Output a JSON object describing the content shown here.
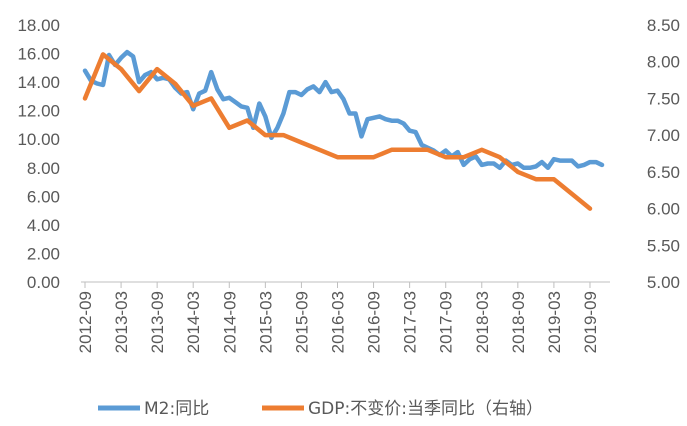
{
  "chart_data": {
    "type": "line",
    "x": [
      "2012-09",
      "2012-10",
      "2012-11",
      "2012-12",
      "2013-01",
      "2013-02",
      "2013-03",
      "2013-04",
      "2013-05",
      "2013-06",
      "2013-07",
      "2013-08",
      "2013-09",
      "2013-10",
      "2013-11",
      "2013-12",
      "2014-01",
      "2014-02",
      "2014-03",
      "2014-04",
      "2014-05",
      "2014-06",
      "2014-07",
      "2014-08",
      "2014-09",
      "2014-10",
      "2014-11",
      "2014-12",
      "2015-01",
      "2015-02",
      "2015-03",
      "2015-04",
      "2015-05",
      "2015-06",
      "2015-07",
      "2015-08",
      "2015-09",
      "2015-10",
      "2015-11",
      "2015-12",
      "2016-01",
      "2016-02",
      "2016-03",
      "2016-04",
      "2016-05",
      "2016-06",
      "2016-07",
      "2016-08",
      "2016-09",
      "2016-10",
      "2016-11",
      "2016-12",
      "2017-01",
      "2017-02",
      "2017-03",
      "2017-04",
      "2017-05",
      "2017-06",
      "2017-07",
      "2017-08",
      "2017-09",
      "2017-10",
      "2017-11",
      "2017-12",
      "2018-01",
      "2018-02",
      "2018-03",
      "2018-04",
      "2018-05",
      "2018-06",
      "2018-07",
      "2018-08",
      "2018-09",
      "2018-10",
      "2018-11",
      "2018-12",
      "2019-01",
      "2019-02",
      "2019-03",
      "2019-04",
      "2019-05",
      "2019-06",
      "2019-07",
      "2019-08",
      "2019-09",
      "2019-10",
      "2019-11"
    ],
    "x_tick_labels": [
      "2012-09",
      "2013-03",
      "2013-09",
      "2014-03",
      "2014-09",
      "2015-03",
      "2015-09",
      "2016-03",
      "2016-09",
      "2017-03",
      "2017-09",
      "2018-03",
      "2018-09",
      "2019-03",
      "2019-09"
    ],
    "left_axis": {
      "ylim": [
        0,
        18
      ],
      "ticks": [
        "0.00",
        "2.00",
        "4.00",
        "6.00",
        "8.00",
        "10.00",
        "12.00",
        "14.00",
        "16.00",
        "18.00"
      ]
    },
    "right_axis": {
      "ylim": [
        5.0,
        8.5
      ],
      "ticks": [
        "5.00",
        "5.50",
        "6.00",
        "6.50",
        "7.00",
        "7.50",
        "8.00",
        "8.50"
      ]
    },
    "grid": false,
    "legend_position": "bottom",
    "series": [
      {
        "name": "M2:同比",
        "axis": "left",
        "color": "#5B9BD5",
        "x": [
          "2012-09",
          "2012-10",
          "2012-11",
          "2012-12",
          "2013-01",
          "2013-02",
          "2013-03",
          "2013-04",
          "2013-05",
          "2013-06",
          "2013-07",
          "2013-08",
          "2013-09",
          "2013-10",
          "2013-11",
          "2013-12",
          "2014-01",
          "2014-02",
          "2014-03",
          "2014-04",
          "2014-05",
          "2014-06",
          "2014-07",
          "2014-08",
          "2014-09",
          "2014-10",
          "2014-11",
          "2014-12",
          "2015-01",
          "2015-02",
          "2015-03",
          "2015-04",
          "2015-05",
          "2015-06",
          "2015-07",
          "2015-08",
          "2015-09",
          "2015-10",
          "2015-11",
          "2015-12",
          "2016-01",
          "2016-02",
          "2016-03",
          "2016-04",
          "2016-05",
          "2016-06",
          "2016-07",
          "2016-08",
          "2016-09",
          "2016-10",
          "2016-11",
          "2016-12",
          "2017-01",
          "2017-02",
          "2017-03",
          "2017-04",
          "2017-05",
          "2017-06",
          "2017-07",
          "2017-08",
          "2017-09",
          "2017-10",
          "2017-11",
          "2017-12",
          "2018-01",
          "2018-02",
          "2018-03",
          "2018-04",
          "2018-05",
          "2018-06",
          "2018-07",
          "2018-08",
          "2018-09",
          "2018-10",
          "2018-11",
          "2018-12",
          "2019-01",
          "2019-02",
          "2019-03",
          "2019-04",
          "2019-05",
          "2019-06",
          "2019-07",
          "2019-08",
          "2019-09",
          "2019-10",
          "2019-11"
        ],
        "values": [
          14.8,
          14.1,
          13.9,
          13.8,
          15.9,
          15.2,
          15.7,
          16.1,
          15.8,
          14.0,
          14.5,
          14.7,
          14.2,
          14.3,
          14.2,
          13.6,
          13.2,
          13.3,
          12.1,
          13.2,
          13.4,
          14.7,
          13.5,
          12.8,
          12.9,
          12.6,
          12.3,
          12.2,
          10.8,
          12.5,
          11.6,
          10.1,
          10.8,
          11.8,
          13.3,
          13.3,
          13.1,
          13.5,
          13.7,
          13.3,
          14.0,
          13.3,
          13.4,
          12.8,
          11.8,
          11.8,
          10.2,
          11.4,
          11.5,
          11.6,
          11.4,
          11.3,
          11.3,
          11.1,
          10.6,
          10.5,
          9.6,
          9.4,
          9.2,
          8.9,
          9.2,
          8.8,
          9.1,
          8.2,
          8.6,
          8.8,
          8.2,
          8.3,
          8.3,
          8.0,
          8.5,
          8.2,
          8.3,
          8.0,
          8.0,
          8.1,
          8.4,
          8.0,
          8.6,
          8.5,
          8.5,
          8.5,
          8.1,
          8.2,
          8.4,
          8.4,
          8.2
        ]
      },
      {
        "name": "GDP:不变价:当季同比（右轴）",
        "axis": "right",
        "color": "#ED7D31",
        "x": [
          "2012-09",
          "2012-12",
          "2013-03",
          "2013-06",
          "2013-09",
          "2013-12",
          "2014-03",
          "2014-06",
          "2014-09",
          "2014-12",
          "2015-03",
          "2015-06",
          "2015-09",
          "2015-12",
          "2016-03",
          "2016-06",
          "2016-09",
          "2016-12",
          "2017-03",
          "2017-06",
          "2017-09",
          "2017-12",
          "2018-03",
          "2018-06",
          "2018-09",
          "2018-12",
          "2019-03",
          "2019-06",
          "2019-09"
        ],
        "values": [
          7.5,
          8.1,
          7.9,
          7.6,
          7.9,
          7.7,
          7.4,
          7.5,
          7.1,
          7.2,
          7.0,
          7.0,
          6.9,
          6.8,
          6.7,
          6.7,
          6.7,
          6.8,
          6.8,
          6.8,
          6.7,
          6.7,
          6.8,
          6.7,
          6.5,
          6.4,
          6.4,
          6.2,
          6.0
        ]
      }
    ]
  }
}
